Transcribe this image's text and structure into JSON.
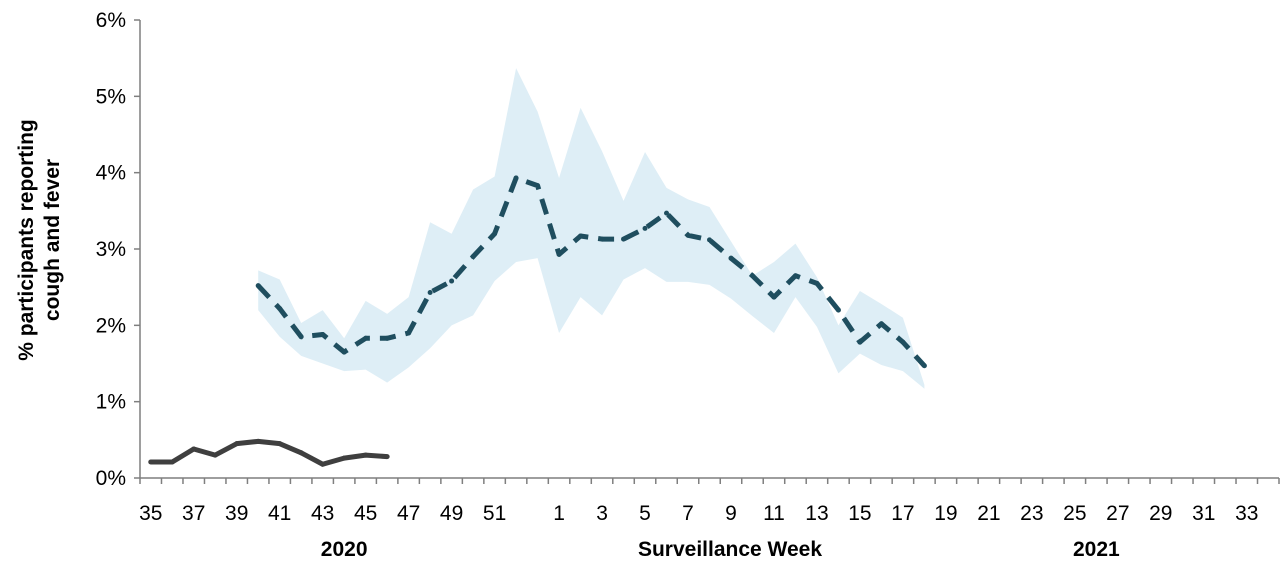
{
  "chart_data": {
    "type": "line",
    "ylabel_lines": [
      "% participants reporting",
      "cough and fever"
    ],
    "xlabel": "Surveillance Week",
    "year_labels": [
      {
        "text": "2020",
        "at_week": "44"
      },
      {
        "text": "2021",
        "at_week": "26"
      }
    ],
    "ylim": [
      0,
      0.06
    ],
    "y_ticks": [
      0,
      0.01,
      0.02,
      0.03,
      0.04,
      0.05,
      0.06
    ],
    "y_tick_labels": [
      "0%",
      "1%",
      "2%",
      "3%",
      "4%",
      "5%",
      "6%"
    ],
    "x_categories": [
      "35",
      "36",
      "37",
      "38",
      "39",
      "40",
      "41",
      "42",
      "43",
      "44",
      "45",
      "46",
      "47",
      "48",
      "49",
      "50",
      "51",
      "52",
      "53",
      "1",
      "2",
      "3",
      "4",
      "5",
      "6",
      "7",
      "8",
      "9",
      "10",
      "11",
      "12",
      "13",
      "14",
      "15",
      "16",
      "17",
      "18",
      "19",
      "20",
      "21",
      "22",
      "23",
      "24",
      "25",
      "26",
      "27",
      "28",
      "29",
      "30",
      "31",
      "32",
      "33",
      "34"
    ],
    "x_tick_labels": [
      "35",
      "",
      "37",
      "",
      "39",
      "",
      "41",
      "",
      "43",
      "",
      "45",
      "",
      "47",
      "",
      "49",
      "",
      "51",
      "",
      "",
      "1",
      "",
      "3",
      "",
      "5",
      "",
      "7",
      "",
      "9",
      "",
      "11",
      "",
      "13",
      "",
      "15",
      "",
      "17",
      "",
      "19",
      "",
      "21",
      "",
      "23",
      "",
      "25",
      "",
      "27",
      "",
      "29",
      "",
      "31",
      "",
      "33",
      ""
    ],
    "grid": false,
    "legend": "none",
    "series": [
      {
        "style": "solid",
        "color": "#3f3f3f",
        "x": [
          "35",
          "36",
          "37",
          "38",
          "39",
          "40",
          "41",
          "42",
          "43",
          "44",
          "45",
          "46"
        ],
        "values": [
          0.0021,
          0.0021,
          0.0038,
          0.003,
          0.0045,
          0.0048,
          0.0045,
          0.0033,
          0.0018,
          0.0026,
          0.003,
          0.0028
        ]
      },
      {
        "style": "dashed",
        "color": "#1f4e5f",
        "x": [
          "40",
          "41",
          "42",
          "43",
          "44",
          "45",
          "46",
          "47",
          "48",
          "49",
          "50",
          "51",
          "52",
          "53",
          "1",
          "2",
          "3",
          "4",
          "5",
          "6",
          "7",
          "8",
          "9",
          "10",
          "11",
          "12",
          "13",
          "14",
          "15",
          "16",
          "17",
          "18"
        ],
        "values": [
          0.0252,
          0.0222,
          0.0185,
          0.0188,
          0.0165,
          0.0183,
          0.0183,
          0.019,
          0.0243,
          0.0258,
          0.029,
          0.032,
          0.0393,
          0.0383,
          0.0293,
          0.0317,
          0.0313,
          0.0313,
          0.0327,
          0.0347,
          0.0318,
          0.0312,
          0.0288,
          0.0265,
          0.0237,
          0.0265,
          0.0255,
          0.022,
          0.0178,
          0.0202,
          0.0178,
          0.0147
        ],
        "band_color": "#deeef6",
        "lower": [
          0.022,
          0.0185,
          0.016,
          0.015,
          0.014,
          0.0142,
          0.0125,
          0.0145,
          0.017,
          0.02,
          0.0213,
          0.0258,
          0.0283,
          0.0288,
          0.019,
          0.0237,
          0.0213,
          0.026,
          0.0275,
          0.0257,
          0.0257,
          0.0253,
          0.0235,
          0.0212,
          0.019,
          0.0237,
          0.0198,
          0.0137,
          0.0163,
          0.0148,
          0.014,
          0.0117
        ],
        "upper": [
          0.0272,
          0.026,
          0.0203,
          0.022,
          0.0183,
          0.0232,
          0.0215,
          0.0237,
          0.0335,
          0.032,
          0.0378,
          0.0395,
          0.0537,
          0.048,
          0.0393,
          0.0485,
          0.0428,
          0.0363,
          0.0427,
          0.038,
          0.0365,
          0.0355,
          0.031,
          0.0265,
          0.0283,
          0.0307,
          0.0263,
          0.02,
          0.0245,
          0.0228,
          0.021,
          0.0122
        ]
      }
    ]
  }
}
